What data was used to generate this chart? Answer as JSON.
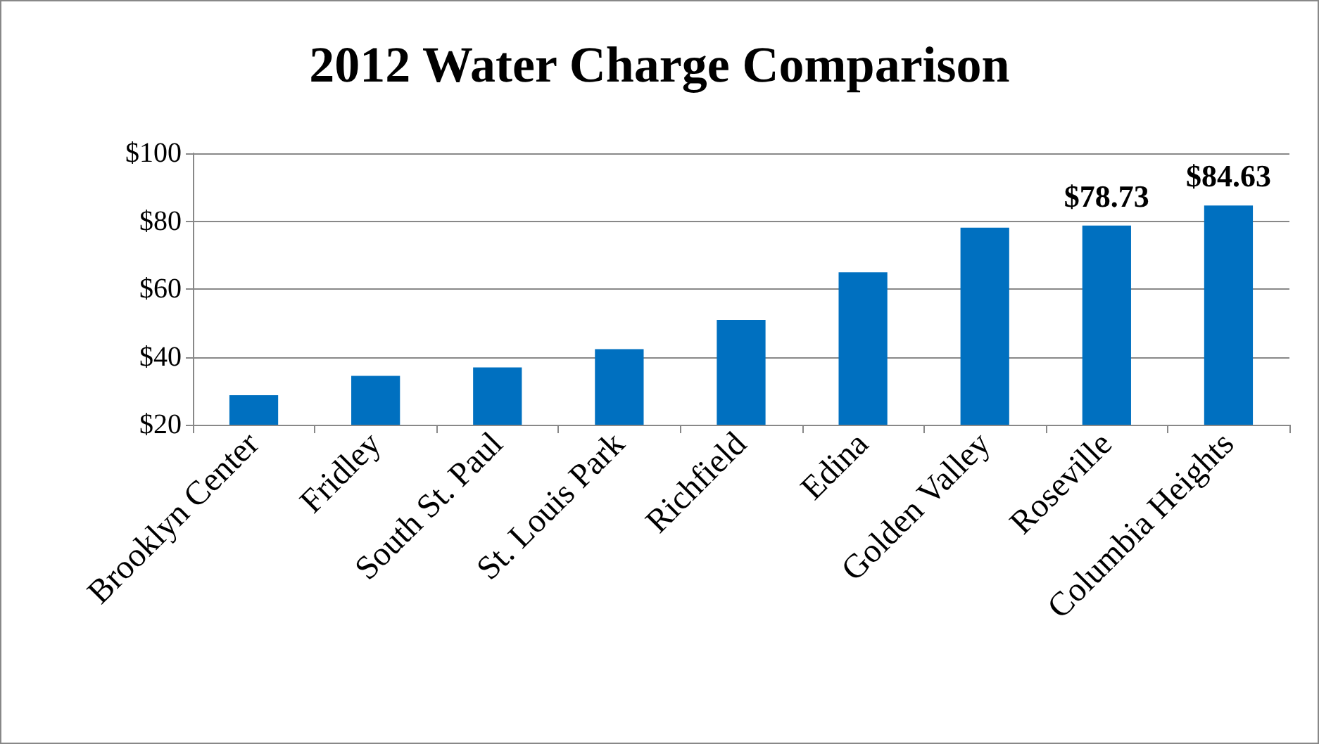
{
  "chart_data": {
    "type": "bar",
    "title": "2012 Water Charge Comparison",
    "categories": [
      "Brooklyn Center",
      "Fridley",
      "South St. Paul",
      "St. Louis Park",
      "Richfield",
      "Edina",
      "Golden Valley",
      "Roseville",
      "Columbia Heights"
    ],
    "values": [
      28.7,
      34.4,
      36.9,
      42.3,
      50.9,
      64.9,
      78.1,
      78.73,
      84.63
    ],
    "value_labels": [
      null,
      null,
      null,
      null,
      null,
      null,
      null,
      "$78.73",
      "$84.63"
    ],
    "color": "#0070c0",
    "ylim": [
      20,
      100
    ],
    "yticks": [
      {
        "value": 20,
        "label": "$20"
      },
      {
        "value": 40,
        "label": "$40"
      },
      {
        "value": 60,
        "label": "$60"
      },
      {
        "value": 80,
        "label": "$80"
      },
      {
        "value": 100,
        "label": "$100"
      }
    ],
    "grid": true
  }
}
